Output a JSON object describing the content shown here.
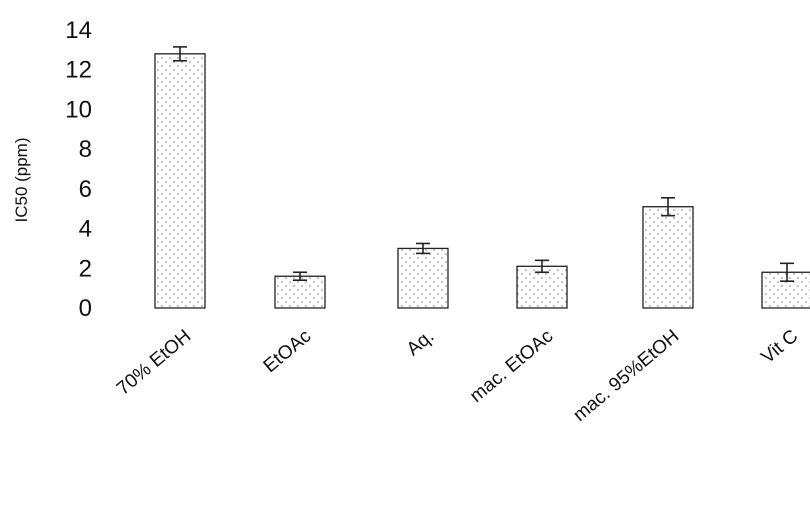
{
  "chart_data": {
    "type": "bar",
    "title": "",
    "xlabel": "",
    "ylabel": "IC50 (ppm)",
    "ylim": [
      0,
      14
    ],
    "yticks": [
      0,
      2,
      4,
      6,
      8,
      10,
      12,
      14
    ],
    "ytick_labels": [
      "0",
      "2",
      "4",
      "6",
      "8",
      "10",
      "12",
      "14"
    ],
    "grid": false,
    "legend": "none",
    "bar_fill": "dotted",
    "categories": [
      "70% EtOH",
      "EtOAc",
      "Aq.",
      "mac. EtOAc",
      "mac. 95%EtOH",
      "Vit C"
    ],
    "values": [
      12.8,
      1.6,
      3.0,
      2.1,
      5.1,
      1.8
    ],
    "errors": [
      0.35,
      0.2,
      0.25,
      0.3,
      0.45,
      0.45
    ],
    "colors": {
      "bar_edge": "#222222",
      "bar_dots": "#777777",
      "axis": "#111111"
    }
  }
}
